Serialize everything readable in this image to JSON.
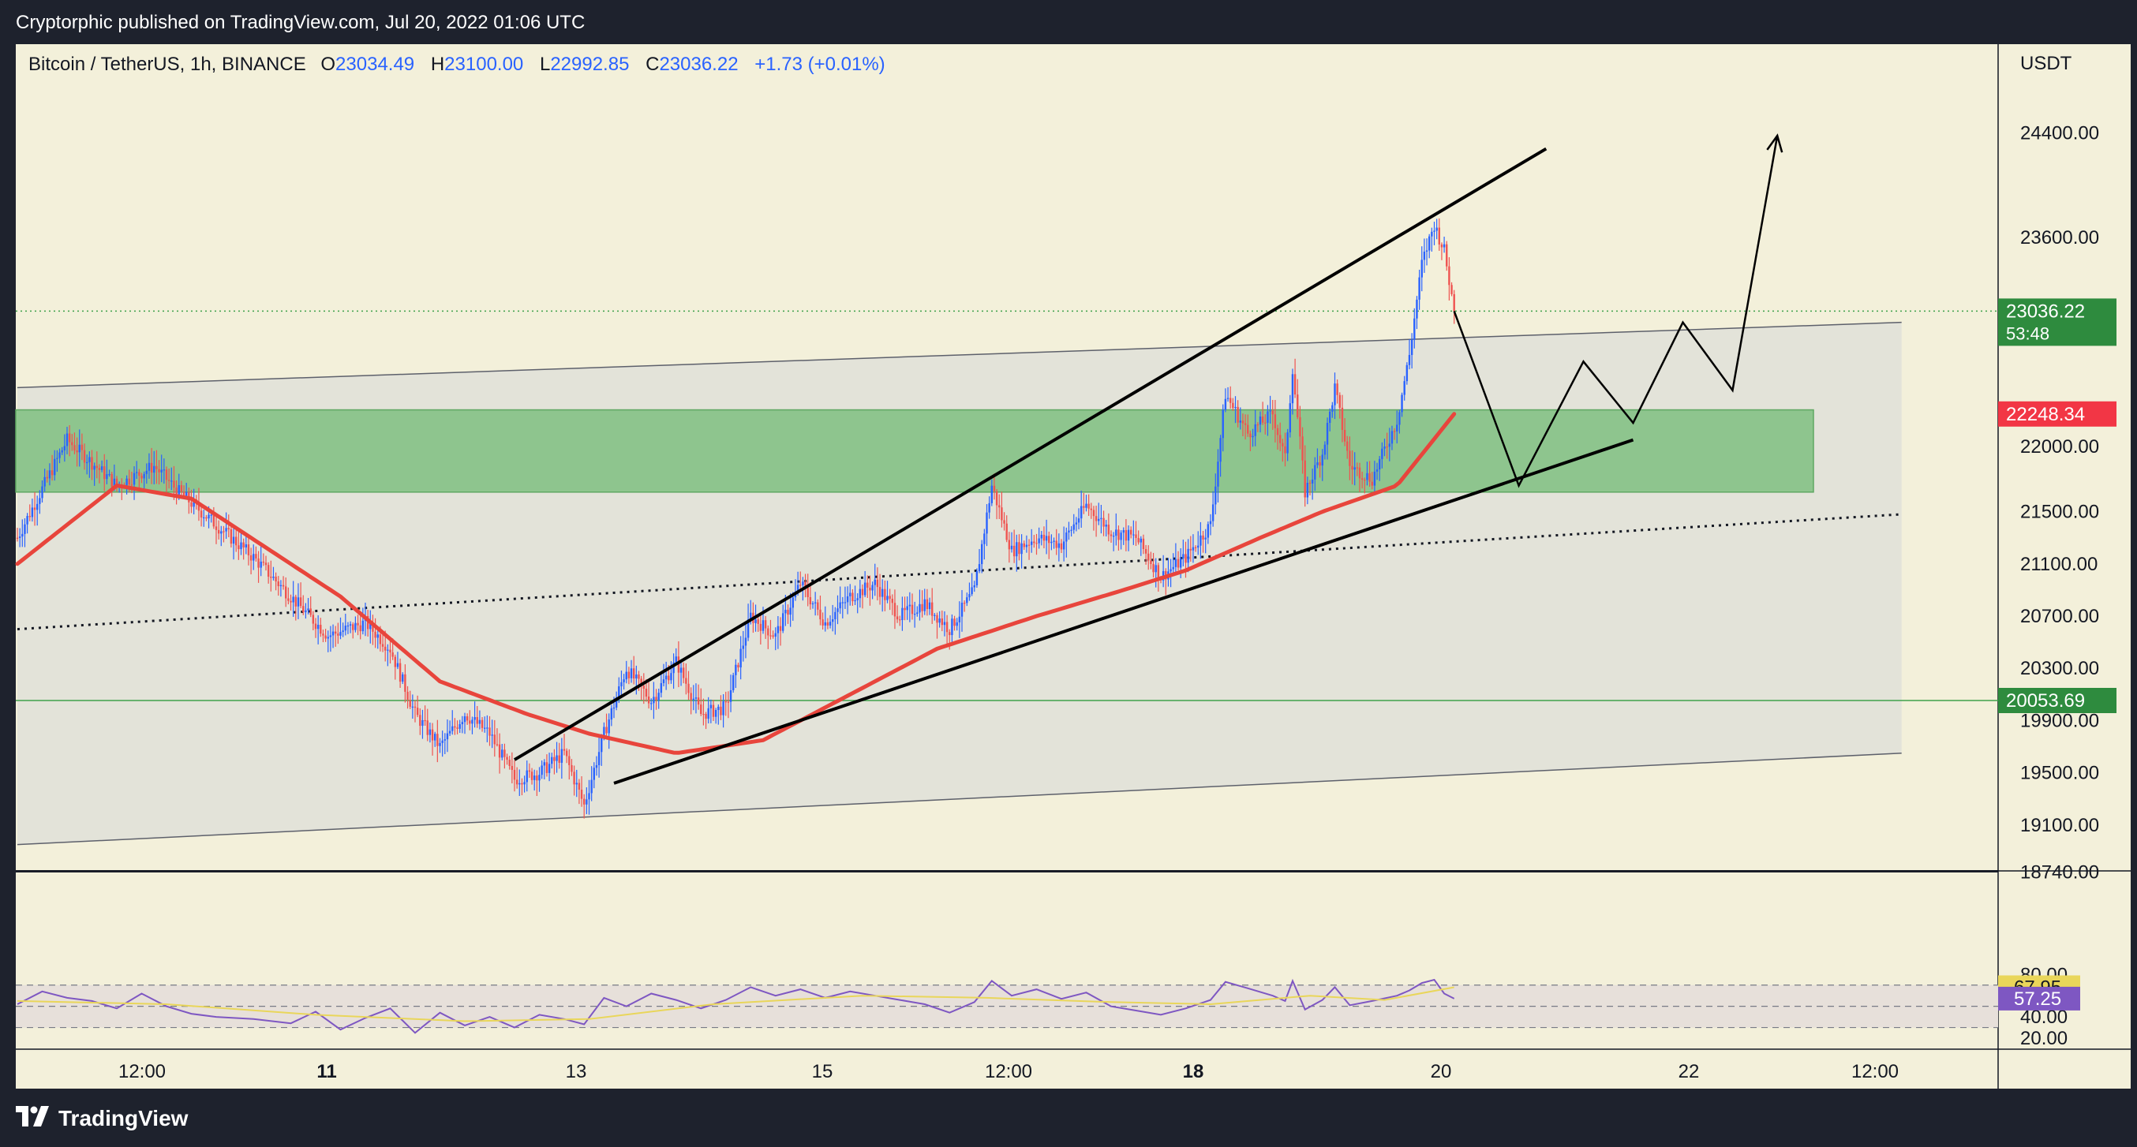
{
  "header": {
    "published": "Cryptorphic published on TradingView.com, Jul 20, 2022 01:06 UTC"
  },
  "footer": {
    "brand": "TradingView"
  },
  "legend": {
    "symbol": "Bitcoin / TetherUS, 1h, BINANCE",
    "o_label": "O",
    "o_value": "23034.49",
    "h_label": "H",
    "h_value": "23100.00",
    "l_label": "L",
    "l_value": "22992.85",
    "c_label": "C",
    "c_value": "23036.22",
    "change": "+1.73 (+0.01%)"
  },
  "colors": {
    "background": "#f3f0da",
    "up": "#2962ff",
    "down": "#ef5350",
    "ma": "#e8453c",
    "zone": "#7fbf80",
    "rsi": "#7e57c2",
    "rsi_ma": "#e9d65a"
  },
  "chart_data": [
    {
      "type": "candlestick",
      "currency_label": "USDT",
      "y_ticks": [
        "24400.00",
        "23600.00",
        "22000.00",
        "21500.00",
        "21100.00",
        "20700.00",
        "20300.00",
        "19900.00",
        "19500.00",
        "19100.00",
        "18740.00"
      ],
      "x_ticks": [
        "12:00",
        "11",
        "13",
        "15",
        "12:00",
        "18",
        "20",
        "22",
        "12:00"
      ],
      "price_tags": [
        {
          "label": "23036.22",
          "sub": "53:48",
          "color": "#2e8b3e"
        },
        {
          "label": "22248.34",
          "color": "#f23645"
        },
        {
          "label": "20053.69",
          "color": "#2e8b3e"
        }
      ],
      "last_price": 23036.22,
      "horizontal_level": 20053.69,
      "ma_last": 22248.34,
      "support_zone": [
        21650,
        22280
      ],
      "candle_keypoints": [
        [
          0,
          21300
        ],
        [
          20,
          22050
        ],
        [
          40,
          21700
        ],
        [
          55,
          21850
        ],
        [
          65,
          21650
        ],
        [
          80,
          21400
        ],
        [
          95,
          21150
        ],
        [
          110,
          20850
        ],
        [
          125,
          20550
        ],
        [
          140,
          20650
        ],
        [
          150,
          20450
        ],
        [
          160,
          19950
        ],
        [
          170,
          19700
        ],
        [
          180,
          19950
        ],
        [
          190,
          19800
        ],
        [
          200,
          19450
        ],
        [
          210,
          19500
        ],
        [
          220,
          19650
        ],
        [
          228,
          19250
        ],
        [
          236,
          19800
        ],
        [
          245,
          20300
        ],
        [
          255,
          20050
        ],
        [
          265,
          20350
        ],
        [
          275,
          19950
        ],
        [
          285,
          20000
        ],
        [
          295,
          20700
        ],
        [
          305,
          20550
        ],
        [
          315,
          20950
        ],
        [
          325,
          20650
        ],
        [
          335,
          20850
        ],
        [
          345,
          20950
        ],
        [
          355,
          20700
        ],
        [
          365,
          20800
        ],
        [
          375,
          20600
        ],
        [
          385,
          20900
        ],
        [
          392,
          21700
        ],
        [
          400,
          21200
        ],
        [
          410,
          21300
        ],
        [
          420,
          21250
        ],
        [
          430,
          21550
        ],
        [
          440,
          21350
        ],
        [
          450,
          21300
        ],
        [
          460,
          21000
        ],
        [
          470,
          21150
        ],
        [
          480,
          21400
        ],
        [
          486,
          22400
        ],
        [
          495,
          22100
        ],
        [
          505,
          22250
        ],
        [
          510,
          21900
        ],
        [
          513,
          22600
        ],
        [
          518,
          21650
        ],
        [
          525,
          21950
        ],
        [
          530,
          22450
        ],
        [
          536,
          21850
        ],
        [
          545,
          21750
        ],
        [
          555,
          22200
        ],
        [
          560,
          22700
        ],
        [
          565,
          23400
        ],
        [
          570,
          23700
        ],
        [
          574,
          23500
        ],
        [
          578,
          23036
        ]
      ],
      "ma_points": [
        [
          0,
          21100
        ],
        [
          40,
          21700
        ],
        [
          70,
          21600
        ],
        [
          130,
          20850
        ],
        [
          170,
          20200
        ],
        [
          205,
          19950
        ],
        [
          230,
          19800
        ],
        [
          265,
          19650
        ],
        [
          300,
          19750
        ],
        [
          335,
          20100
        ],
        [
          370,
          20450
        ],
        [
          410,
          20700
        ],
        [
          445,
          20900
        ],
        [
          470,
          21050
        ],
        [
          500,
          21300
        ],
        [
          525,
          21500
        ],
        [
          555,
          21700
        ],
        [
          578,
          22248
        ]
      ],
      "channel_upper": [
        [
          0,
          22450
        ],
        [
          758,
          22950
        ]
      ],
      "channel_lower": [
        [
          0,
          18950
        ],
        [
          758,
          19650
        ]
      ],
      "channel_mid": [
        [
          0,
          20600
        ],
        [
          758,
          21480
        ]
      ],
      "rising_top": [
        [
          200,
          19600
        ],
        [
          615,
          24280
        ]
      ],
      "rising_bottom": [
        [
          240,
          19420
        ],
        [
          650,
          22050
        ]
      ],
      "projection": [
        [
          578,
          23036
        ],
        [
          604,
          21700
        ],
        [
          630,
          22650
        ],
        [
          650,
          22180
        ],
        [
          670,
          22950
        ],
        [
          690,
          22430
        ],
        [
          708,
          24380
        ]
      ]
    },
    {
      "type": "line",
      "title": "",
      "y_ticks": [
        "80.00",
        "40.00",
        "20.00"
      ],
      "overbought": 70,
      "oversold": 30,
      "rsi_last": 57.25,
      "rsi_ma_last": 67.95,
      "rsi_keypoints": [
        [
          0,
          52
        ],
        [
          10,
          64
        ],
        [
          20,
          58
        ],
        [
          30,
          55
        ],
        [
          40,
          48
        ],
        [
          50,
          62
        ],
        [
          60,
          50
        ],
        [
          70,
          43
        ],
        [
          80,
          40
        ],
        [
          95,
          38
        ],
        [
          110,
          34
        ],
        [
          120,
          45
        ],
        [
          130,
          28
        ],
        [
          140,
          39
        ],
        [
          150,
          48
        ],
        [
          160,
          25
        ],
        [
          170,
          44
        ],
        [
          180,
          32
        ],
        [
          190,
          40
        ],
        [
          200,
          30
        ],
        [
          210,
          42
        ],
        [
          220,
          38
        ],
        [
          228,
          33
        ],
        [
          236,
          58
        ],
        [
          245,
          50
        ],
        [
          255,
          62
        ],
        [
          265,
          56
        ],
        [
          275,
          48
        ],
        [
          285,
          56
        ],
        [
          295,
          68
        ],
        [
          305,
          60
        ],
        [
          315,
          66
        ],
        [
          325,
          58
        ],
        [
          335,
          64
        ],
        [
          345,
          60
        ],
        [
          355,
          56
        ],
        [
          365,
          52
        ],
        [
          375,
          44
        ],
        [
          385,
          54
        ],
        [
          392,
          74
        ],
        [
          400,
          60
        ],
        [
          410,
          66
        ],
        [
          420,
          57
        ],
        [
          430,
          63
        ],
        [
          440,
          50
        ],
        [
          450,
          46
        ],
        [
          460,
          42
        ],
        [
          470,
          48
        ],
        [
          480,
          56
        ],
        [
          486,
          73
        ],
        [
          495,
          67
        ],
        [
          505,
          60
        ],
        [
          510,
          55
        ],
        [
          513,
          74
        ],
        [
          518,
          47
        ],
        [
          525,
          56
        ],
        [
          530,
          68
        ],
        [
          536,
          51
        ],
        [
          545,
          55
        ],
        [
          555,
          60
        ],
        [
          560,
          65
        ],
        [
          565,
          72
        ],
        [
          570,
          75
        ],
        [
          574,
          62
        ],
        [
          578,
          57.25
        ]
      ],
      "rsi_ma_points": [
        [
          0,
          55
        ],
        [
          60,
          52
        ],
        [
          120,
          42
        ],
        [
          180,
          36
        ],
        [
          230,
          38
        ],
        [
          280,
          52
        ],
        [
          340,
          60
        ],
        [
          390,
          58
        ],
        [
          440,
          54
        ],
        [
          480,
          52
        ],
        [
          520,
          60
        ],
        [
          550,
          56
        ],
        [
          578,
          67.95
        ]
      ]
    }
  ]
}
